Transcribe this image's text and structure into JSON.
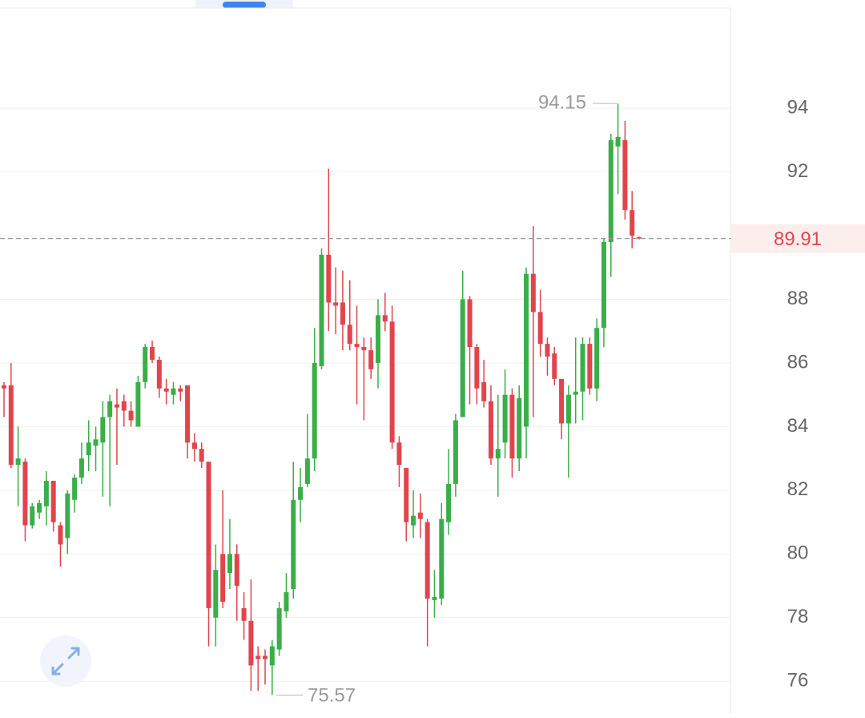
{
  "chart_data": {
    "type": "candlestick",
    "up_color": "#3aae48",
    "down_color": "#e0454d",
    "ylim": [
      75.0,
      97.4
    ],
    "yticks": [
      76,
      78,
      80,
      82,
      84,
      86,
      88,
      90,
      92,
      94
    ],
    "grid": true,
    "last_price": 89.91,
    "max_label": 94.15,
    "min_label": 75.57,
    "candles": [
      [
        85.3,
        85.4,
        84.3,
        85.2
      ],
      [
        85.3,
        86.0,
        82.7,
        82.8
      ],
      [
        82.8,
        84.0,
        81.5,
        83.0
      ],
      [
        82.9,
        83.0,
        80.4,
        80.9
      ],
      [
        80.9,
        81.6,
        80.8,
        81.5
      ],
      [
        81.3,
        81.7,
        81.1,
        81.6
      ],
      [
        81.5,
        82.6,
        80.9,
        82.3
      ],
      [
        82.3,
        82.3,
        80.7,
        81.0
      ],
      [
        80.9,
        81.0,
        79.6,
        80.3
      ],
      [
        80.5,
        82.0,
        80.0,
        81.9
      ],
      [
        81.7,
        82.5,
        81.3,
        82.4
      ],
      [
        82.4,
        83.5,
        82.2,
        83.0
      ],
      [
        83.1,
        84.2,
        82.6,
        83.5
      ],
      [
        83.4,
        84.0,
        82.6,
        83.6
      ],
      [
        83.5,
        84.8,
        81.8,
        84.3
      ],
      [
        84.3,
        85.0,
        81.5,
        84.8
      ],
      [
        84.7,
        85.2,
        82.8,
        84.6
      ],
      [
        84.8,
        85.0,
        84.0,
        84.5
      ],
      [
        84.5,
        84.8,
        84.0,
        84.2
      ],
      [
        84.0,
        85.6,
        84.0,
        85.4
      ],
      [
        85.4,
        86.6,
        85.2,
        86.5
      ],
      [
        86.5,
        86.7,
        86.0,
        86.1
      ],
      [
        86.1,
        86.2,
        84.9,
        85.2
      ],
      [
        85.2,
        85.5,
        84.7,
        85.1
      ],
      [
        85.0,
        85.4,
        84.7,
        85.2
      ],
      [
        85.2,
        85.3,
        84.8,
        85.1
      ],
      [
        85.3,
        85.3,
        83.0,
        83.5
      ],
      [
        83.5,
        83.8,
        82.9,
        83.3
      ],
      [
        83.3,
        83.5,
        82.7,
        82.9
      ],
      [
        82.9,
        82.9,
        77.1,
        78.3
      ],
      [
        78.0,
        80.3,
        77.1,
        79.5
      ],
      [
        80.0,
        82.0,
        78.3,
        78.5
      ],
      [
        79.4,
        81.1,
        78.9,
        80.0
      ],
      [
        80.0,
        80.3,
        77.9,
        79.0
      ],
      [
        78.3,
        78.8,
        77.3,
        77.9
      ],
      [
        77.9,
        79.2,
        75.7,
        76.5
      ],
      [
        76.8,
        77.1,
        75.7,
        76.7
      ],
      [
        76.8,
        77.0,
        75.9,
        76.7
      ],
      [
        76.5,
        77.3,
        75.57,
        77.1
      ],
      [
        77.0,
        78.5,
        76.8,
        78.3
      ],
      [
        78.2,
        79.4,
        78.0,
        78.8
      ],
      [
        78.9,
        82.9,
        78.6,
        81.7
      ],
      [
        81.7,
        82.7,
        81.0,
        82.1
      ],
      [
        82.2,
        84.4,
        82.1,
        83.0
      ],
      [
        83.0,
        87.1,
        82.6,
        86.0
      ],
      [
        85.9,
        89.6,
        85.8,
        89.4
      ],
      [
        89.4,
        92.1,
        87.0,
        87.9
      ],
      [
        87.9,
        89.0,
        86.9,
        87.8
      ],
      [
        87.9,
        88.9,
        86.4,
        87.2
      ],
      [
        87.2,
        88.6,
        86.4,
        86.6
      ],
      [
        86.6,
        87.8,
        84.7,
        86.5
      ],
      [
        86.5,
        86.8,
        84.2,
        86.4
      ],
      [
        86.4,
        86.8,
        85.5,
        85.8
      ],
      [
        86.0,
        88.0,
        85.2,
        87.5
      ],
      [
        87.5,
        88.2,
        87.0,
        87.3
      ],
      [
        87.3,
        87.8,
        83.3,
        83.5
      ],
      [
        83.5,
        83.7,
        82.1,
        82.8
      ],
      [
        82.7,
        82.7,
        80.4,
        81.0
      ],
      [
        80.9,
        82.0,
        80.5,
        81.2
      ],
      [
        81.3,
        81.9,
        80.5,
        81.1
      ],
      [
        81.0,
        81.1,
        77.1,
        78.6
      ],
      [
        78.55,
        79.5,
        78.0,
        78.65
      ],
      [
        78.6,
        81.6,
        78.4,
        81.1
      ],
      [
        81.0,
        83.3,
        80.6,
        82.2
      ],
      [
        82.2,
        84.4,
        81.8,
        84.2
      ],
      [
        84.3,
        88.9,
        84.3,
        88.0
      ],
      [
        88.0,
        88.1,
        84.7,
        86.5
      ],
      [
        86.5,
        86.6,
        84.7,
        85.2
      ],
      [
        85.4,
        86.1,
        84.6,
        84.8
      ],
      [
        84.8,
        85.3,
        82.8,
        83.0
      ],
      [
        83.0,
        85.0,
        81.8,
        83.3
      ],
      [
        83.5,
        85.8,
        83.0,
        85.0
      ],
      [
        85.0,
        85.2,
        82.4,
        83.0
      ],
      [
        83.0,
        85.3,
        82.6,
        84.9
      ],
      [
        84.0,
        89.0,
        83.0,
        88.8
      ],
      [
        88.8,
        90.3,
        84.3,
        87.6
      ],
      [
        87.6,
        88.3,
        86.2,
        86.6
      ],
      [
        86.6,
        86.8,
        85.6,
        86.2
      ],
      [
        86.3,
        86.5,
        85.3,
        85.5
      ],
      [
        85.5,
        85.5,
        83.6,
        84.1
      ],
      [
        84.1,
        85.3,
        82.4,
        85.0
      ],
      [
        85.0,
        86.8,
        84.1,
        85.1
      ],
      [
        85.1,
        86.8,
        84.2,
        86.6
      ],
      [
        86.6,
        86.8,
        85.0,
        85.2
      ],
      [
        85.2,
        87.4,
        84.8,
        87.1
      ],
      [
        87.1,
        89.9,
        86.5,
        89.8
      ],
      [
        89.8,
        93.2,
        88.7,
        93.0
      ],
      [
        92.8,
        94.15,
        91.3,
        93.1
      ],
      [
        93.0,
        93.6,
        90.5,
        90.8
      ],
      [
        90.8,
        91.4,
        89.6,
        90.0
      ],
      [
        89.95,
        89.97,
        89.88,
        89.91
      ]
    ]
  }
}
